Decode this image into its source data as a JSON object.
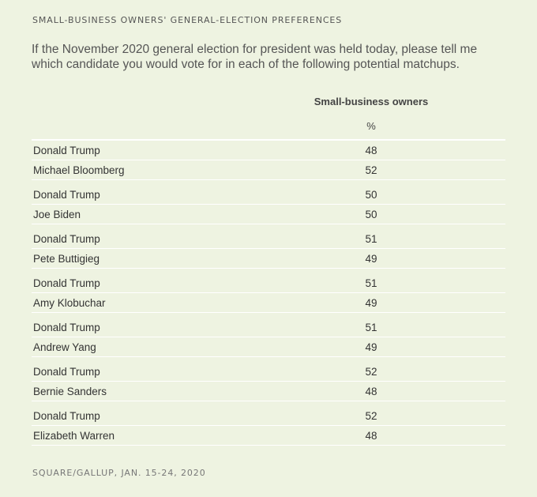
{
  "kicker": "SMALL-BUSINESS OWNERS' GENERAL-ELECTION PREFERENCES",
  "question": "If the November 2020 general election for president was held today, please tell me which candidate you would vote for in each of the following potential matchups.",
  "table": {
    "column_header": "Small-business owners",
    "unit": "%",
    "matchups": [
      [
        {
          "name": "Donald Trump",
          "value": "48"
        },
        {
          "name": "Michael Bloomberg",
          "value": "52"
        }
      ],
      [
        {
          "name": "Donald Trump",
          "value": "50"
        },
        {
          "name": "Joe Biden",
          "value": "50"
        }
      ],
      [
        {
          "name": "Donald Trump",
          "value": "51"
        },
        {
          "name": "Pete Buttigieg",
          "value": "49"
        }
      ],
      [
        {
          "name": "Donald Trump",
          "value": "51"
        },
        {
          "name": "Amy Klobuchar",
          "value": "49"
        }
      ],
      [
        {
          "name": "Donald Trump",
          "value": "51"
        },
        {
          "name": "Andrew Yang",
          "value": "49"
        }
      ],
      [
        {
          "name": "Donald Trump",
          "value": "52"
        },
        {
          "name": "Bernie Sanders",
          "value": "48"
        }
      ],
      [
        {
          "name": "Donald Trump",
          "value": "52"
        },
        {
          "name": "Elizabeth Warren",
          "value": "48"
        }
      ]
    ]
  },
  "source": "SQUARE/GALLUP, JAN. 15-24, 2020",
  "colors": {
    "background": "#eef3e1",
    "rule": "#ffffff",
    "text": "#333333"
  }
}
